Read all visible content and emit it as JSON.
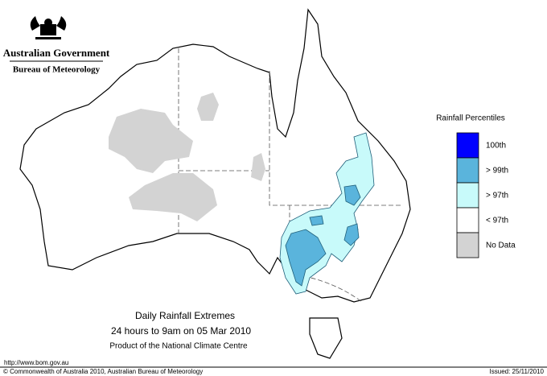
{
  "header": {
    "government": "Australian Government",
    "agency": "Bureau of Meteorology"
  },
  "legend": {
    "title": "Rainfall Percentiles",
    "items": [
      {
        "label": "100th",
        "color": "#0000ff"
      },
      {
        "label": "> 99th",
        "color": "#5ab4dc"
      },
      {
        "label": "> 97th",
        "color": "#c8fafa"
      },
      {
        "label": "< 97th",
        "color": "#ffffff"
      },
      {
        "label": "No Data",
        "color": "#d3d3d3"
      }
    ]
  },
  "caption": {
    "title": "Daily Rainfall Extremes",
    "period": "24 hours to 9am on 05 Mar 2010",
    "product": "Product of the National Climate Centre"
  },
  "footer": {
    "url": "http://www.bom.gov.au",
    "copyright": "© Commonwealth of Australia 2010, Australian Bureau of Meteorology",
    "issued": "Issued: 25/11/2010"
  }
}
